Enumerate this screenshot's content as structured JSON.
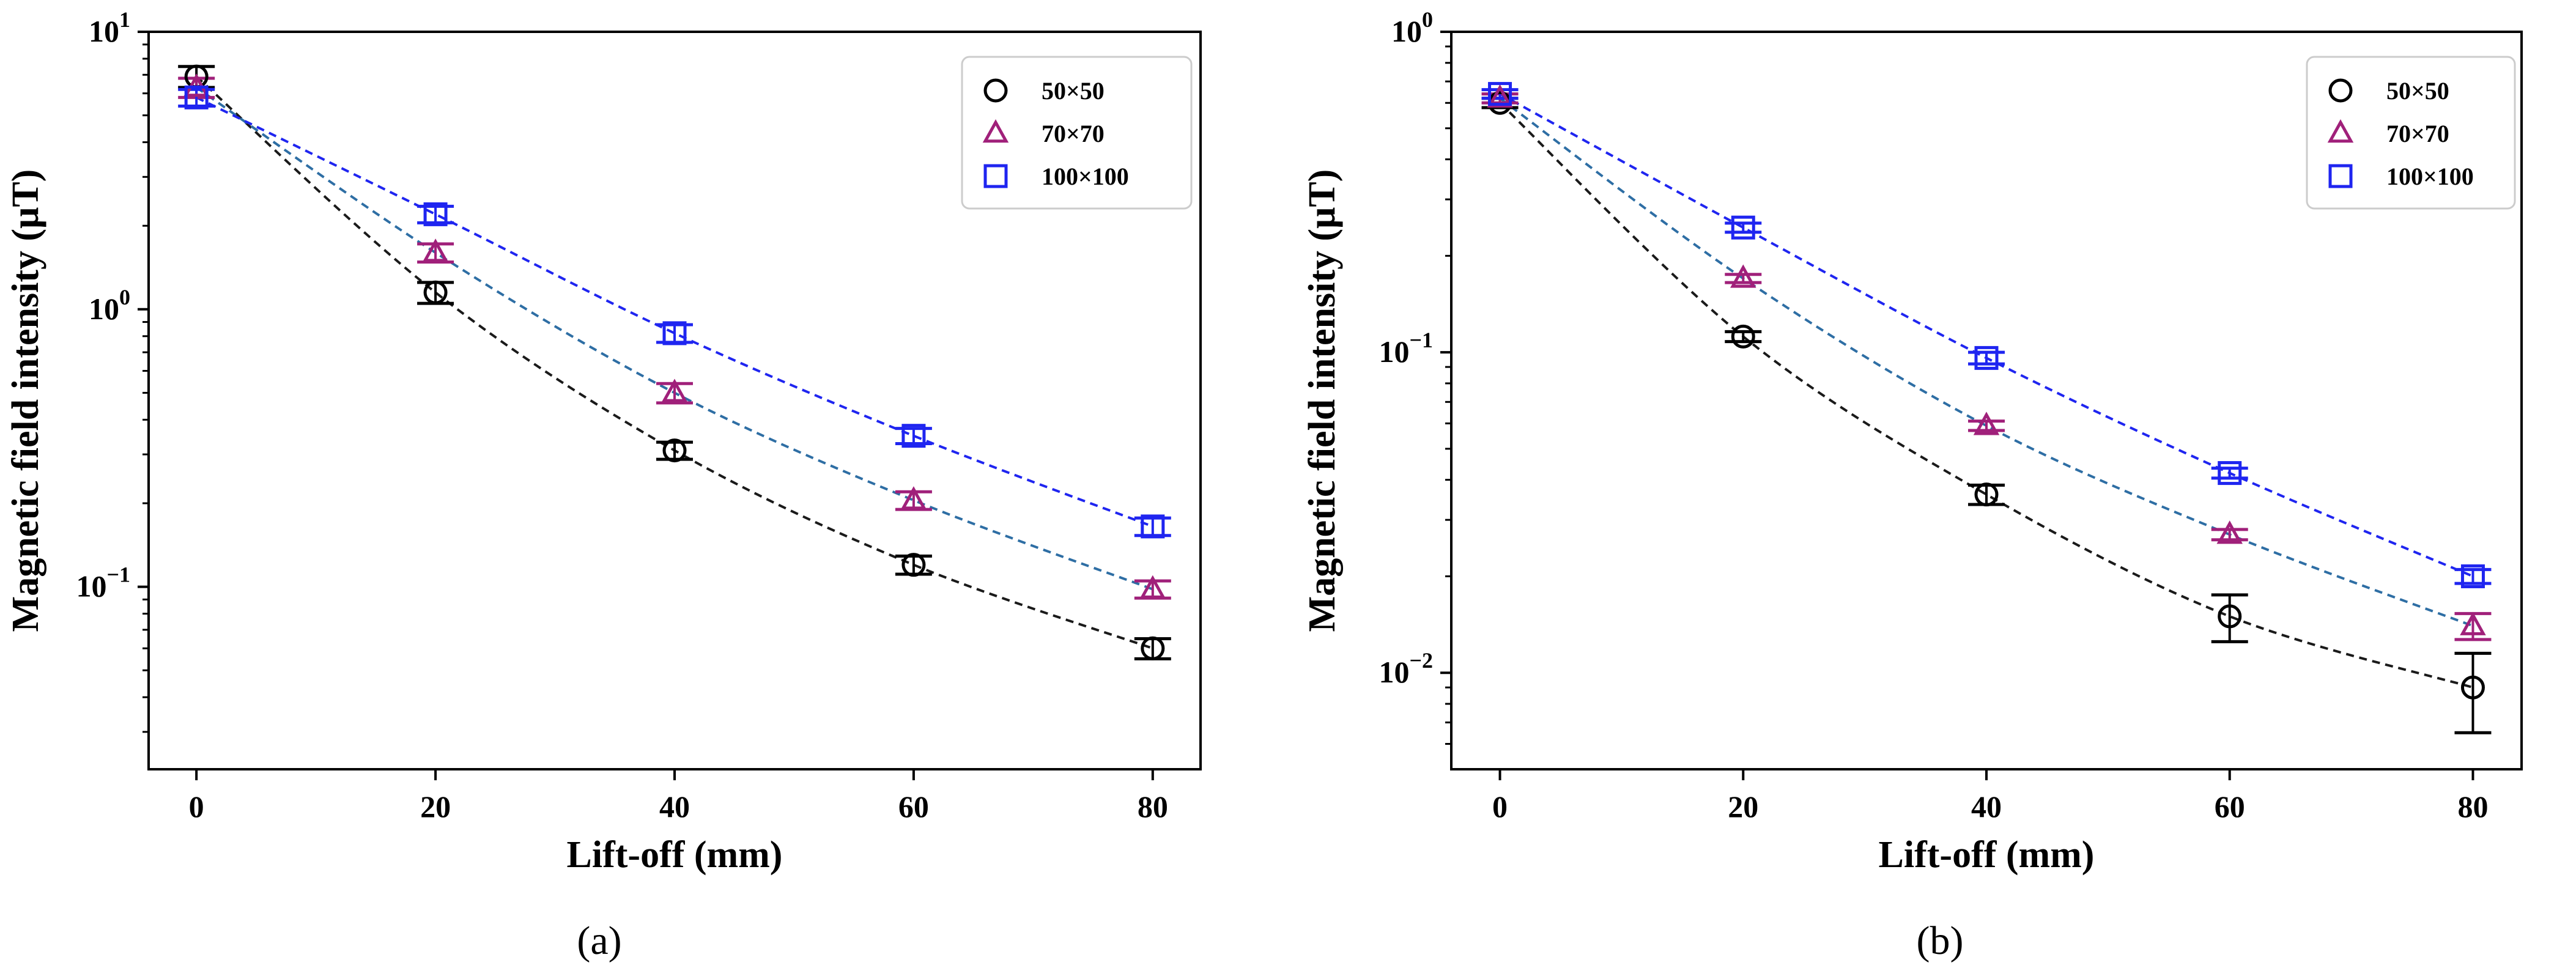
{
  "chart_data": [
    {
      "type": "line",
      "panel": "a",
      "caption": "(a)",
      "xlabel": "Lift-off (mm)",
      "ylabel": "Magnetic field intensity (μT)",
      "yscale": "log",
      "xlim": [
        -4,
        84
      ],
      "ylim": [
        0.022,
        10
      ],
      "x_ticks": [
        {
          "value": 0,
          "label": "0"
        },
        {
          "value": 20,
          "label": "20"
        },
        {
          "value": 40,
          "label": "40"
        },
        {
          "value": 60,
          "label": "60"
        },
        {
          "value": 80,
          "label": "80"
        }
      ],
      "y_ticks": [
        {
          "value": 10,
          "base": "10",
          "exp": "1"
        },
        {
          "value": 1,
          "base": "10",
          "exp": "0"
        },
        {
          "value": 0.1,
          "base": "10",
          "exp": "−1"
        }
      ],
      "legend_position": "top-right",
      "x": [
        0,
        20,
        40,
        60,
        80
      ],
      "series": [
        {
          "name": "50×50",
          "marker": "circle",
          "color": "#000000",
          "fit_color": "#1a1a1a",
          "values": [
            6.9,
            1.15,
            0.31,
            0.12,
            0.06
          ],
          "err_lo": [
            0.6,
            0.1,
            0.022,
            0.009,
            0.005
          ],
          "err_hi": [
            0.6,
            0.1,
            0.022,
            0.009,
            0.005
          ]
        },
        {
          "name": "70×70",
          "marker": "triangle",
          "color": "#a0207a",
          "fit_color": "#2e6ea4",
          "values": [
            6.3,
            1.6,
            0.5,
            0.205,
            0.098
          ],
          "err_lo": [
            0.5,
            0.12,
            0.04,
            0.015,
            0.007
          ],
          "err_hi": [
            0.5,
            0.12,
            0.04,
            0.015,
            0.007
          ]
        },
        {
          "name": "100×100",
          "marker": "square",
          "color": "#1f25f0",
          "fit_color": "#1f25f0",
          "values": [
            5.8,
            2.2,
            0.82,
            0.35,
            0.165
          ],
          "err_lo": [
            0.4,
            0.15,
            0.06,
            0.022,
            0.012
          ],
          "err_hi": [
            0.4,
            0.15,
            0.06,
            0.022,
            0.012
          ]
        }
      ]
    },
    {
      "type": "line",
      "panel": "b",
      "caption": "(b)",
      "xlabel": "Lift-off (mm)",
      "ylabel": "Magnetic field intensity (μT)",
      "yscale": "log",
      "xlim": [
        -4,
        84
      ],
      "ylim": [
        0.005,
        1
      ],
      "x_ticks": [
        {
          "value": 0,
          "label": "0"
        },
        {
          "value": 20,
          "label": "20"
        },
        {
          "value": 40,
          "label": "40"
        },
        {
          "value": 60,
          "label": "60"
        },
        {
          "value": 80,
          "label": "80"
        }
      ],
      "y_ticks": [
        {
          "value": 1,
          "base": "10",
          "exp": "0"
        },
        {
          "value": 0.1,
          "base": "10",
          "exp": "−1"
        },
        {
          "value": 0.01,
          "base": "10",
          "exp": "−2"
        }
      ],
      "legend_position": "top-right",
      "x": [
        0,
        20,
        40,
        60,
        80
      ],
      "series": [
        {
          "name": "50×50",
          "marker": "circle",
          "color": "#000000",
          "fit_color": "#1a1a1a",
          "values": [
            0.6,
            0.112,
            0.036,
            0.015,
            0.009
          ],
          "err_lo": [
            0.02,
            0.004,
            0.0025,
            0.0025,
            0.0025
          ],
          "err_hi": [
            0.02,
            0.004,
            0.0025,
            0.0025,
            0.0025
          ]
        },
        {
          "name": "70×70",
          "marker": "triangle",
          "color": "#a0207a",
          "fit_color": "#2e6ea4",
          "values": [
            0.62,
            0.17,
            0.059,
            0.027,
            0.014
          ],
          "err_lo": [
            0.02,
            0.005,
            0.002,
            0.001,
            0.0013
          ],
          "err_hi": [
            0.02,
            0.005,
            0.002,
            0.001,
            0.0013
          ]
        },
        {
          "name": "100×100",
          "marker": "square",
          "color": "#1f25f0",
          "fit_color": "#1f25f0",
          "values": [
            0.64,
            0.245,
            0.096,
            0.042,
            0.02
          ],
          "err_lo": [
            0.02,
            0.008,
            0.004,
            0.0015,
            0.001
          ],
          "err_hi": [
            0.02,
            0.008,
            0.004,
            0.0015,
            0.001
          ]
        }
      ]
    }
  ]
}
